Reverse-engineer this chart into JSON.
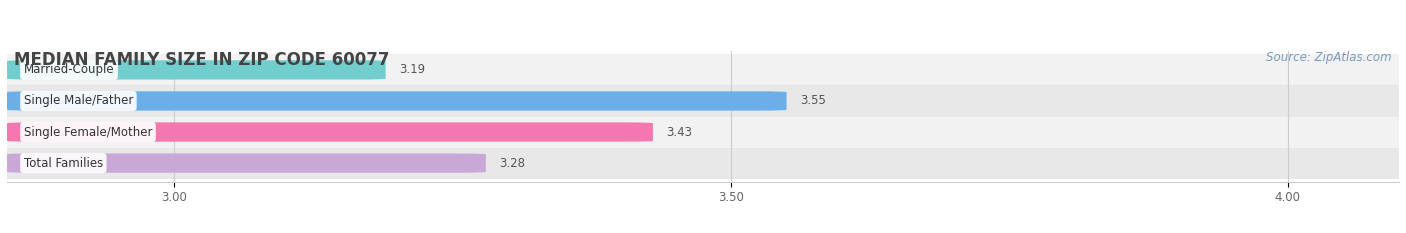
{
  "title": "MEDIAN FAMILY SIZE IN ZIP CODE 60077",
  "source": "Source: ZipAtlas.com",
  "categories": [
    "Married-Couple",
    "Single Male/Father",
    "Single Female/Mother",
    "Total Families"
  ],
  "values": [
    3.19,
    3.55,
    3.43,
    3.28
  ],
  "bar_colors": [
    "#72cece",
    "#6baee8",
    "#f478b0",
    "#c9a8d8"
  ],
  "xlim": [
    2.85,
    4.1
  ],
  "xticks": [
    3.0,
    3.5,
    4.0
  ],
  "bar_height": 0.62,
  "figsize": [
    14.06,
    2.33
  ],
  "dpi": 100,
  "title_fontsize": 12,
  "label_fontsize": 8.5,
  "value_fontsize": 8.5,
  "tick_fontsize": 8.5,
  "source_fontsize": 8.5,
  "bg_color": "#ffffff",
  "row_bg_even": "#f2f2f2",
  "row_bg_odd": "#e8e8e8"
}
